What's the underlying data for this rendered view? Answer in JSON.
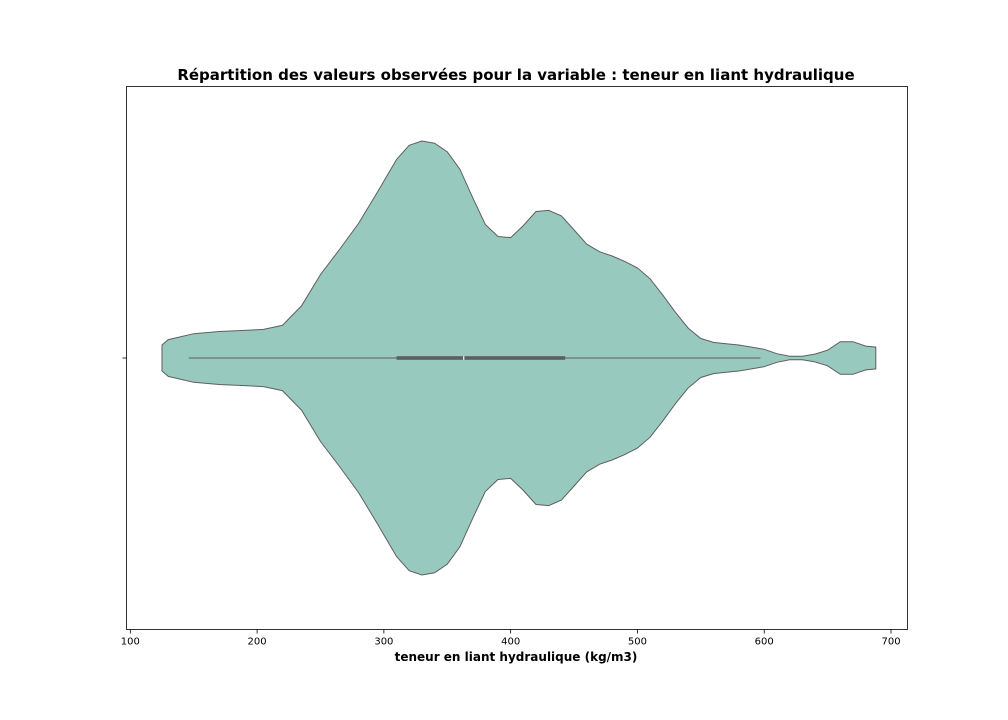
{
  "chart_data": {
    "type": "violin",
    "title": "Répartition des valeurs observées pour la variable : teneur en liant hydraulique",
    "xlabel": "teneur en liant hydraulique (kg/m3)",
    "ylabel": "",
    "xlim": [
      97,
      713
    ],
    "xticks": [
      100,
      200,
      300,
      400,
      500,
      600,
      700
    ],
    "grid": false,
    "colors": {
      "fill": "#98c9bf",
      "stroke": "#5e5e5e",
      "frame": "#000000"
    },
    "density": {
      "x": [
        125,
        130,
        150,
        170,
        190,
        205,
        220,
        235,
        250,
        265,
        280,
        295,
        310,
        320,
        330,
        340,
        350,
        360,
        370,
        380,
        390,
        400,
        410,
        420,
        430,
        440,
        450,
        460,
        470,
        480,
        490,
        500,
        510,
        520,
        530,
        540,
        550,
        560,
        570,
        580,
        590,
        600,
        610,
        620,
        630,
        640,
        650,
        660,
        670,
        680,
        688
      ],
      "half_width": [
        0.06,
        0.085,
        0.112,
        0.122,
        0.127,
        0.132,
        0.15,
        0.24,
        0.385,
        0.5,
        0.62,
        0.765,
        0.915,
        0.98,
        1.0,
        0.99,
        0.95,
        0.87,
        0.74,
        0.615,
        0.56,
        0.555,
        0.61,
        0.675,
        0.68,
        0.655,
        0.59,
        0.525,
        0.49,
        0.47,
        0.445,
        0.415,
        0.365,
        0.29,
        0.21,
        0.138,
        0.09,
        0.072,
        0.066,
        0.06,
        0.05,
        0.04,
        0.02,
        0.008,
        0.008,
        0.018,
        0.036,
        0.075,
        0.075,
        0.055,
        0.05
      ]
    },
    "box": {
      "whisker_low": 146,
      "q1": 310,
      "median": 363,
      "q3": 443,
      "whisker_high": 597
    }
  }
}
